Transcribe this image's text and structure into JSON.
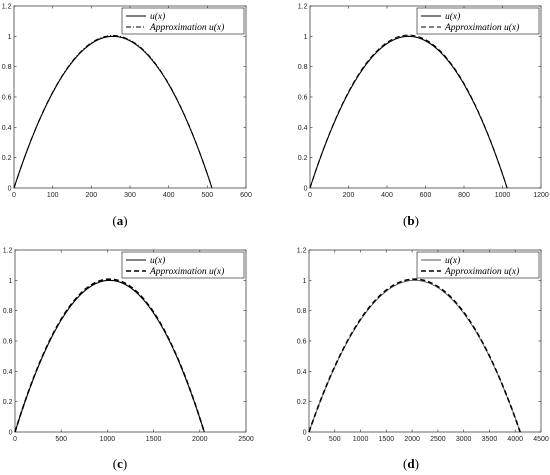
{
  "chart_data": [
    {
      "type": "line",
      "caption_open": "(",
      "caption_letter": "a",
      "caption_close": ")",
      "xlim": [
        0,
        600
      ],
      "ylim": [
        0,
        1.2
      ],
      "x_ticks": [
        0,
        100,
        200,
        300,
        400,
        500,
        600
      ],
      "y_ticks": [
        0,
        0.2,
        0.4,
        0.6,
        0.8,
        1,
        1.2
      ],
      "grid": false,
      "legend_position": "top-right",
      "series": [
        {
          "name": "u(x)",
          "style": "solid",
          "color": "#000000",
          "x_start": 0,
          "x_end": 512,
          "peak_x": 256,
          "peak_y": 1.0
        },
        {
          "name": "Approximation u(x)",
          "style": "dash-dot",
          "color": "#000000",
          "x_start": 0,
          "x_end": 512,
          "peak_x": 256,
          "peak_y": 1.005
        }
      ]
    },
    {
      "type": "line",
      "caption_open": "(",
      "caption_letter": "b",
      "caption_close": ")",
      "xlim": [
        0,
        1200
      ],
      "ylim": [
        0,
        1.2
      ],
      "x_ticks": [
        0,
        200,
        400,
        600,
        800,
        1000,
        1200
      ],
      "y_ticks": [
        0,
        0.2,
        0.4,
        0.6,
        0.8,
        1,
        1.2
      ],
      "grid": false,
      "legend_position": "top-right",
      "series": [
        {
          "name": "u(x)",
          "style": "solid",
          "color": "#000000",
          "x_start": 0,
          "x_end": 1024,
          "peak_x": 512,
          "peak_y": 1.0
        },
        {
          "name": "Approximation u(x)",
          "style": "dashed",
          "color": "#000000",
          "x_start": 0,
          "x_end": 1024,
          "peak_x": 512,
          "peak_y": 1.008
        }
      ]
    },
    {
      "type": "line",
      "caption_open": "(",
      "caption_letter": "c",
      "caption_close": ")",
      "xlim": [
        0,
        2500
      ],
      "ylim": [
        0,
        1.2
      ],
      "x_ticks": [
        0,
        500,
        1000,
        1500,
        2000,
        2500
      ],
      "y_ticks": [
        0,
        0.2,
        0.4,
        0.6,
        0.8,
        1,
        1.2
      ],
      "grid": false,
      "legend_position": "top-right",
      "series": [
        {
          "name": "u(x)",
          "style": "solid",
          "color": "#000000",
          "x_start": 0,
          "x_end": 2048,
          "peak_x": 1024,
          "peak_y": 1.0
        },
        {
          "name": "Approximation u(x)",
          "style": "dashed-bold",
          "color": "#000000",
          "x_start": 0,
          "x_end": 2048,
          "peak_x": 1024,
          "peak_y": 1.008
        }
      ]
    },
    {
      "type": "line",
      "caption_open": "(",
      "caption_letter": "d",
      "caption_close": ")",
      "xlim": [
        0,
        4500
      ],
      "ylim": [
        0,
        1.2
      ],
      "x_ticks": [
        0,
        500,
        1000,
        1500,
        2000,
        2500,
        3000,
        3500,
        4000,
        4500
      ],
      "y_ticks": [
        0,
        0.2,
        0.4,
        0.6,
        0.8,
        1,
        1.2
      ],
      "grid": false,
      "legend_position": "top-right",
      "series": [
        {
          "name": "u(x)",
          "style": "solid-thin",
          "color": "#555555",
          "x_start": 0,
          "x_end": 4096,
          "peak_x": 2048,
          "peak_y": 1.0
        },
        {
          "name": "Approximation u(x)",
          "style": "dashed-bold",
          "color": "#000000",
          "x_start": 0,
          "x_end": 4096,
          "peak_x": 2048,
          "peak_y": 1.008
        }
      ]
    }
  ]
}
